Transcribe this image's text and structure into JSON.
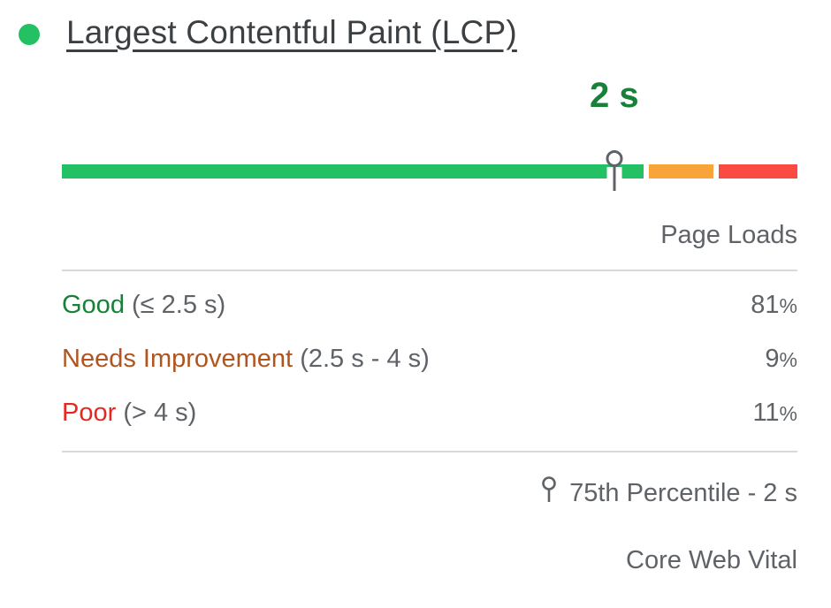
{
  "header": {
    "dot_color": "#23c163",
    "title": "Largest Contentful Paint (LCP)"
  },
  "chart_data": {
    "type": "bar",
    "title": "Largest Contentful Paint (LCP)",
    "categories": [
      "Good (≤ 2.5 s)",
      "Needs Improvement (2.5 s - 4 s)",
      "Poor (> 4 s)"
    ],
    "values": [
      81,
      9,
      11
    ],
    "unit": "% of page loads",
    "segment_colors": [
      "#23c163",
      "#f9a43b",
      "#fa4b42"
    ],
    "legend_position": "below",
    "marker": {
      "label": "2 s",
      "position_pct": 75.1,
      "description": "75th Percentile - 2 s"
    }
  },
  "column_header": "Page Loads",
  "rows": [
    {
      "name": "Good",
      "range": "(≤ 2.5 s)",
      "value": 81,
      "color": "#188038"
    },
    {
      "name": "Needs Improvement",
      "range": "(2.5 s - 4 s)",
      "value": 9,
      "color": "#b0551f"
    },
    {
      "name": "Poor",
      "range": "(> 4 s)",
      "value": 11,
      "color": "#e8271e"
    }
  ],
  "percent_sign": "%",
  "footer": {
    "percentile_label": "75th Percentile - 2 s",
    "badge": "Core Web Vital"
  },
  "colors": {
    "text_primary": "#3c4043",
    "text_secondary": "#5f6368",
    "divider": "#d9d9dd",
    "marker_label_green": "#188038",
    "marker_pin_gray": "#5f6368"
  }
}
